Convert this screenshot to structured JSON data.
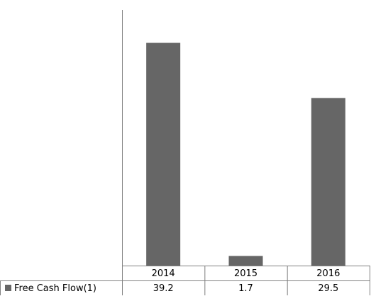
{
  "chart_data": {
    "type": "bar",
    "categories": [
      "2014",
      "2015",
      "2016"
    ],
    "series": [
      {
        "name": "Free Cash Flow(1)",
        "values": [
          39.2,
          1.7,
          29.5
        ]
      }
    ],
    "ylim": [
      0,
      45
    ],
    "grid": false,
    "legend": "data-table-row-left",
    "colors": {
      "bar": "#666666",
      "axis": "#808080",
      "background": "#ffffff"
    }
  }
}
